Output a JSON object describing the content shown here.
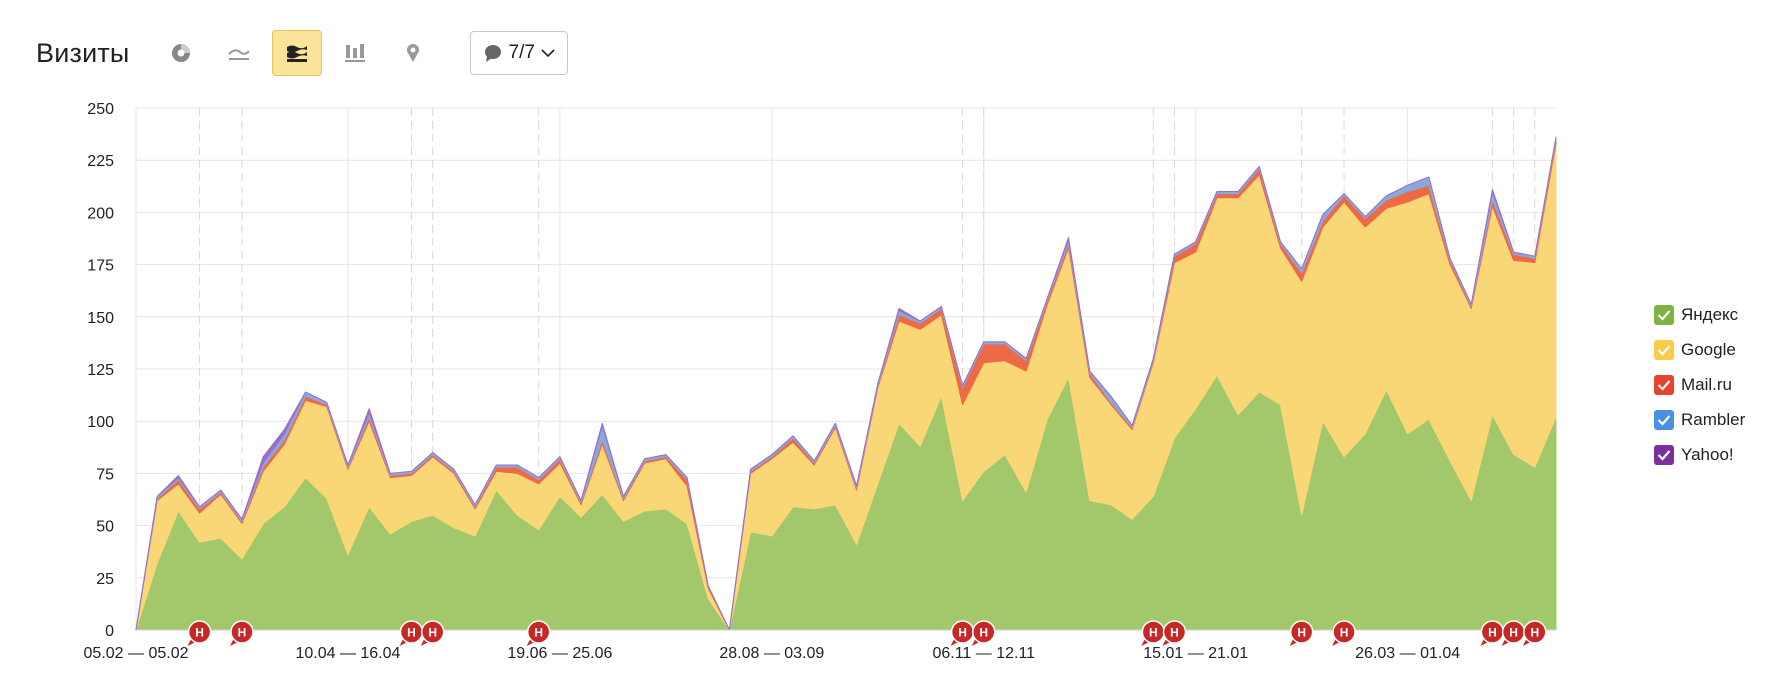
{
  "toolbar": {
    "title": "Визиты",
    "buttons": [
      {
        "icon": "pie-chart-icon"
      },
      {
        "icon": "line-chart-icon"
      },
      {
        "icon": "stacked-area-chart-icon",
        "active": true
      },
      {
        "icon": "bar-chart-icon"
      },
      {
        "icon": "map-icon"
      }
    ],
    "goals_selector": {
      "icon": "speech-bubble-icon",
      "label": "7/7"
    }
  },
  "legend": [
    {
      "label": "Яндекс",
      "color": "#7cb342"
    },
    {
      "label": "Google",
      "color": "#f9cb4a"
    },
    {
      "label": "Mail.ru",
      "color": "#e8432e"
    },
    {
      "label": "Rambler",
      "color": "#4a90e2"
    },
    {
      "label": "Yahoo!",
      "color": "#7b2fa0"
    }
  ],
  "chart_data": {
    "type": "area",
    "stacked": true,
    "ylim": [
      0,
      250
    ],
    "yticks": [
      0,
      25,
      50,
      75,
      100,
      125,
      150,
      175,
      200,
      225,
      250
    ],
    "x_tick_labels": [
      "05.02 — 05.02",
      "10.04 — 16.04",
      "19.06 — 25.06",
      "28.08 — 03.09",
      "06.11 — 12.11",
      "15.01 — 21.01",
      "26.03 — 01.04"
    ],
    "x_tick_indices": [
      0,
      10,
      20,
      30,
      40,
      50,
      60
    ],
    "grid": true,
    "legend_position": "right",
    "series": [
      {
        "name": "Яндекс",
        "color": "#a3c86b",
        "values": [
          0,
          32,
          57,
          42,
          44,
          34,
          51,
          59,
          73,
          63,
          36,
          59,
          46,
          52,
          55,
          49,
          45,
          67,
          55,
          48,
          64,
          54,
          65,
          52,
          57,
          58,
          51,
          15,
          0,
          47,
          45,
          59,
          58,
          60,
          41,
          70,
          99,
          88,
          112,
          62,
          76,
          84,
          66,
          101,
          121,
          62,
          60,
          53,
          64,
          92,
          106,
          122,
          103,
          114,
          108,
          55,
          100,
          83,
          94,
          115,
          94,
          101,
          81,
          62,
          103,
          84,
          78,
          102
        ]
      },
      {
        "name": "Google",
        "color": "#fad776",
        "values": [
          0,
          30,
          13,
          14,
          21,
          17,
          25,
          30,
          37,
          44,
          41,
          41,
          27,
          22,
          28,
          26,
          13,
          9,
          20,
          22,
          16,
          6,
          24,
          10,
          23,
          24,
          18,
          5,
          0,
          28,
          37,
          31,
          21,
          37,
          26,
          46,
          49,
          56,
          39,
          46,
          52,
          45,
          58,
          55,
          62,
          59,
          48,
          43,
          64,
          84,
          75,
          85,
          104,
          104,
          75,
          112,
          93,
          122,
          99,
          87,
          111,
          108,
          94,
          92,
          100,
          93,
          98,
          131
        ]
      },
      {
        "name": "Mail.ru",
        "color": "#ee6a45",
        "values": [
          0,
          1,
          2,
          2,
          1,
          1,
          2,
          2,
          2,
          1,
          1,
          2,
          1,
          1,
          1,
          1,
          1,
          2,
          3,
          2,
          2,
          1,
          2,
          1,
          1,
          1,
          3,
          1,
          0,
          1,
          1,
          2,
          1,
          1,
          1,
          1,
          3,
          3,
          3,
          8,
          9,
          8,
          5,
          2,
          2,
          2,
          1,
          1,
          1,
          3,
          4,
          2,
          2,
          3,
          2,
          4,
          3,
          3,
          4,
          4,
          5,
          4,
          2,
          1,
          3,
          3,
          2,
          2
        ]
      },
      {
        "name": "Rambler",
        "color": "#88a8e0",
        "values": [
          0,
          1,
          1,
          1,
          1,
          1,
          2,
          3,
          2,
          1,
          1,
          2,
          1,
          1,
          1,
          1,
          1,
          1,
          1,
          1,
          1,
          1,
          7,
          1,
          1,
          1,
          1,
          0,
          0,
          1,
          1,
          1,
          1,
          1,
          1,
          1,
          2,
          1,
          1,
          1,
          1,
          1,
          1,
          1,
          2,
          1,
          3,
          1,
          1,
          1,
          1,
          1,
          1,
          1,
          1,
          2,
          3,
          1,
          1,
          2,
          3,
          4,
          1,
          1,
          4,
          1,
          1,
          1
        ]
      },
      {
        "name": "Yahoo!",
        "color": "#9b6fc4",
        "values": [
          0,
          0,
          1,
          0,
          0,
          0,
          3,
          2,
          0,
          0,
          0,
          2,
          0,
          0,
          0,
          0,
          0,
          0,
          0,
          0,
          0,
          0,
          1,
          0,
          0,
          0,
          0,
          0,
          0,
          0,
          0,
          0,
          0,
          0,
          0,
          0,
          1,
          0,
          0,
          0,
          0,
          0,
          0,
          0,
          1,
          0,
          0,
          0,
          0,
          0,
          0,
          0,
          0,
          0,
          0,
          0,
          0,
          0,
          0,
          0,
          0,
          0,
          0,
          0,
          1,
          0,
          0,
          0
        ]
      }
    ],
    "annotations": {
      "marker_label": "Н",
      "marker_color": "#c62828",
      "markers": [
        3,
        5,
        13,
        14,
        19,
        39,
        40,
        48,
        49,
        55,
        57,
        64,
        65,
        66
      ],
      "dashed_lines": [
        3,
        5,
        13,
        14,
        19,
        39,
        40,
        48,
        49,
        55,
        57,
        64,
        65,
        66
      ]
    }
  }
}
